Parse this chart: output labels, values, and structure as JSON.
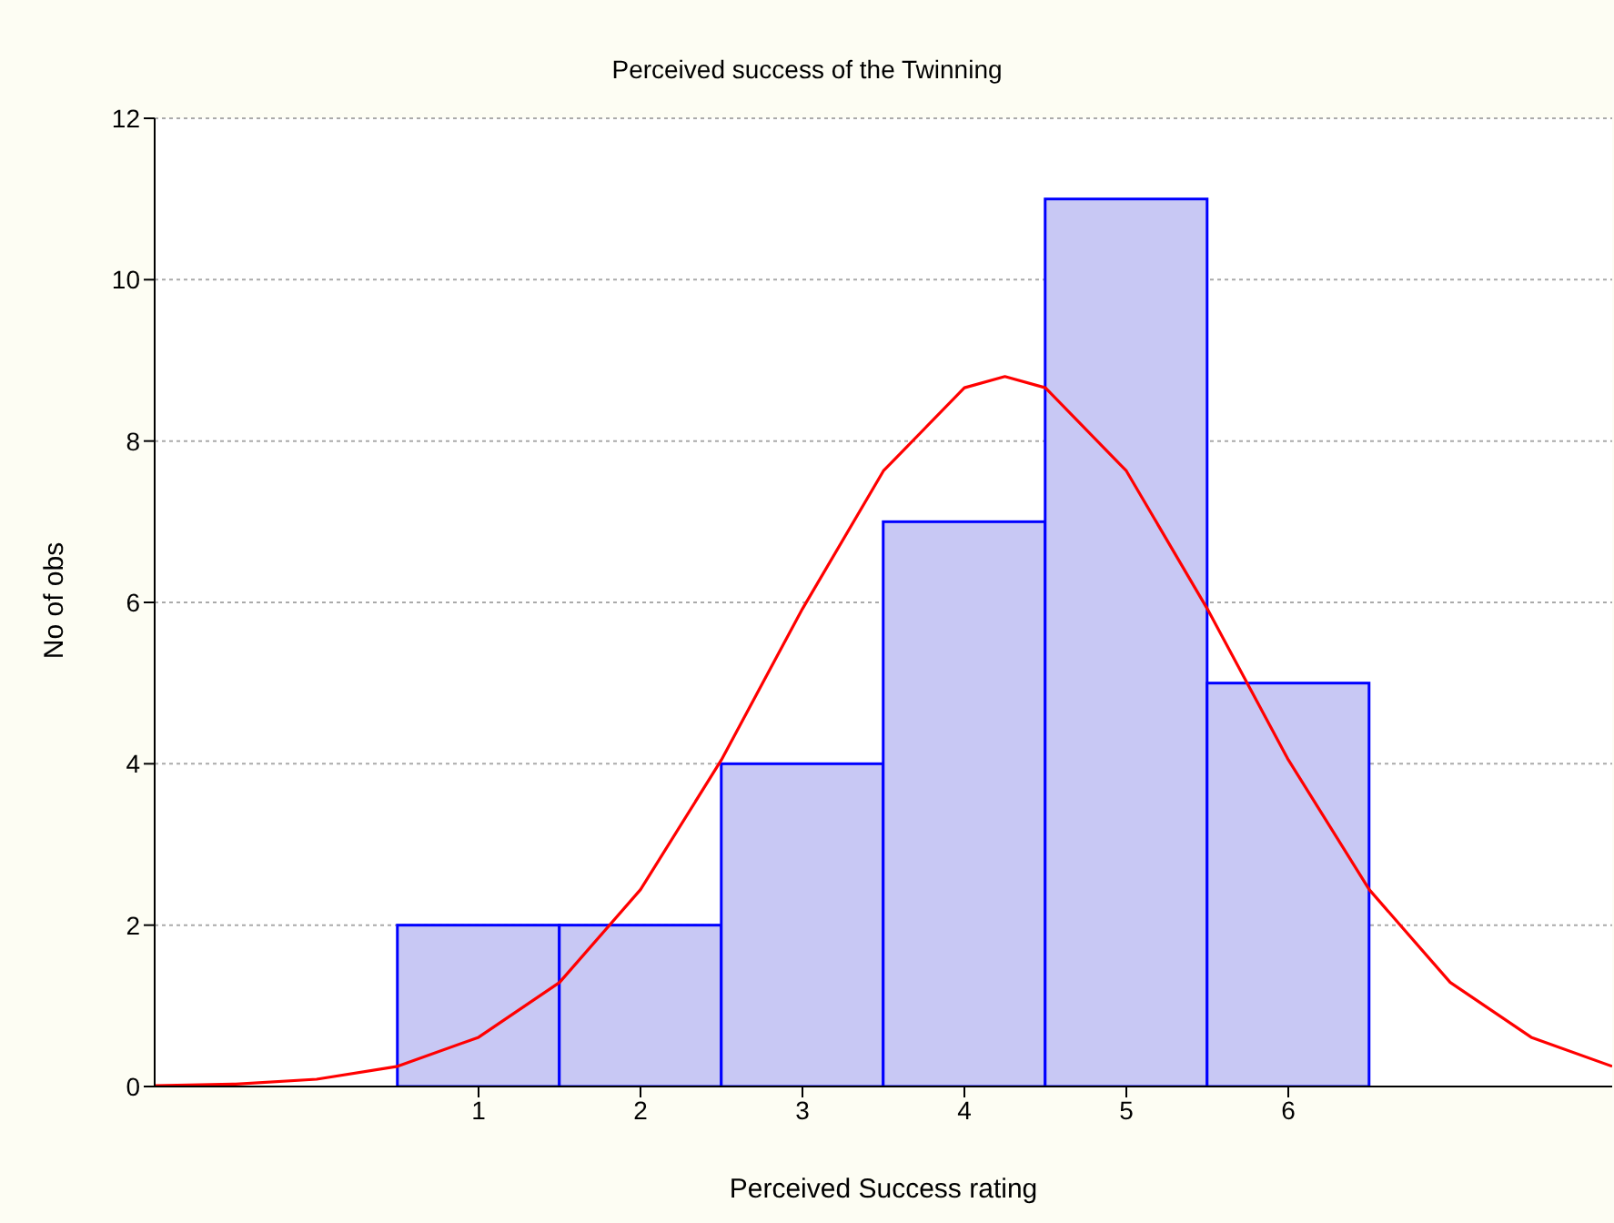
{
  "chart_data": {
    "type": "histogram",
    "title": "Perceived success of the Twinning",
    "xlabel": "Perceived Success rating",
    "ylabel": "No of obs",
    "bins": [
      0.5,
      1.5,
      2.5,
      3.5,
      4.5,
      5.5,
      6.5
    ],
    "values": [
      2,
      2,
      4,
      7,
      11,
      5
    ],
    "color": "#c8c8f4",
    "series": [
      {
        "type": "line",
        "color": "#ff0000",
        "x": [
          -1,
          -0.5,
          0,
          0.5,
          1,
          1.5,
          2,
          2.5,
          3,
          3.5,
          4,
          4.25,
          4.5,
          5,
          5.5,
          6,
          6.5,
          7,
          7.5,
          8
        ],
        "values": [
          0.01,
          0.03,
          0.09,
          0.25,
          0.61,
          1.29,
          2.44,
          4.05,
          5.92,
          7.63,
          8.66,
          8.8,
          8.66,
          7.63,
          5.92,
          4.05,
          2.44,
          1.29,
          0.61,
          0.25
        ]
      }
    ],
    "xlim": [
      -1,
      8
    ],
    "xticks": [
      1,
      2,
      3,
      4,
      5,
      6
    ],
    "ylim": [
      0,
      12
    ],
    "yticks": [
      0,
      2,
      4,
      6,
      8,
      10,
      12
    ],
    "grid": "y",
    "marker": "none"
  }
}
